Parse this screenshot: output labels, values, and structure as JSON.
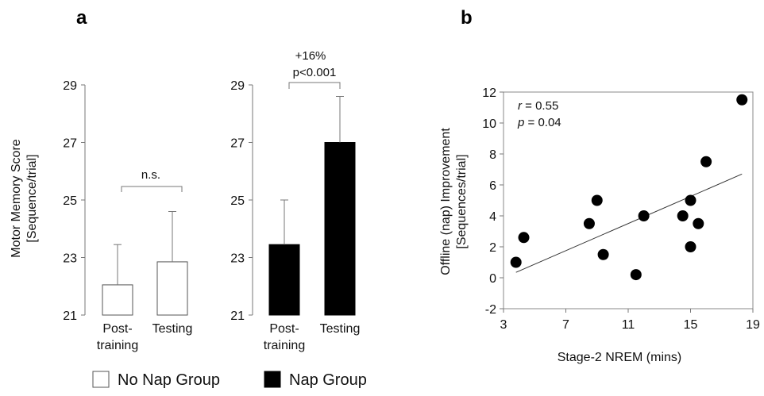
{
  "panel_labels": {
    "a": "a",
    "b": "b"
  },
  "legend": {
    "no_nap": "No Nap Group",
    "nap": "Nap Group"
  },
  "colors": {
    "no_nap_fill": "#ffffff",
    "nap_fill": "#000000",
    "axis": "#777777"
  },
  "chart_data": [
    {
      "type": "bar",
      "ylabel_line1": "Motor Memory Score",
      "ylabel_line2": "[Sequence/trial]",
      "ylim": [
        21,
        29
      ],
      "yticks": [
        "21",
        "23",
        "25",
        "27",
        "29"
      ],
      "categories": [
        [
          "Post-",
          "training"
        ],
        [
          "Testing"
        ]
      ],
      "series": [
        {
          "values": [
            22.05,
            22.85
          ],
          "errors": [
            1.4,
            1.75
          ]
        }
      ],
      "annotation": {
        "line1": "n.s.",
        "line2": ""
      }
    },
    {
      "type": "bar",
      "ylim": [
        21,
        29
      ],
      "yticks": [
        "21",
        "23",
        "25",
        "27",
        "29"
      ],
      "categories": [
        [
          "Post-",
          "training"
        ],
        [
          "Testing"
        ]
      ],
      "series": [
        {
          "values": [
            23.45,
            27.0
          ],
          "errors": [
            1.55,
            1.6
          ]
        }
      ],
      "annotation": {
        "line1": "+16%",
        "line2": "p<0.001"
      }
    },
    {
      "type": "scatter",
      "xlabel": "Stage-2 NREM (mins)",
      "ylabel_line1": "Offline (nap) Improvement",
      "ylabel_line2": "[Sequences/trial]",
      "xlim": [
        3,
        19
      ],
      "ylim": [
        -2,
        12
      ],
      "xticks": [
        "3",
        "7",
        "11",
        "15",
        "19"
      ],
      "yticks": [
        "-2",
        "0",
        "2",
        "4",
        "6",
        "8",
        "10",
        "12"
      ],
      "stats": {
        "r_sym": "r",
        "r_val": " = 0.55",
        "p_sym": "p",
        "p_val": " = 0.04"
      },
      "points": [
        [
          3.8,
          1.0
        ],
        [
          4.3,
          2.6
        ],
        [
          8.5,
          3.5
        ],
        [
          9.0,
          5.0
        ],
        [
          9.4,
          1.5
        ],
        [
          11.5,
          0.2
        ],
        [
          12.0,
          4.0
        ],
        [
          14.5,
          4.0
        ],
        [
          15.0,
          5.0
        ],
        [
          15.0,
          2.0
        ],
        [
          15.5,
          3.5
        ],
        [
          16.0,
          7.5
        ],
        [
          18.3,
          11.5
        ]
      ],
      "fit": {
        "x": [
          3.8,
          18.3
        ],
        "y": [
          0.35,
          6.7
        ]
      }
    }
  ]
}
